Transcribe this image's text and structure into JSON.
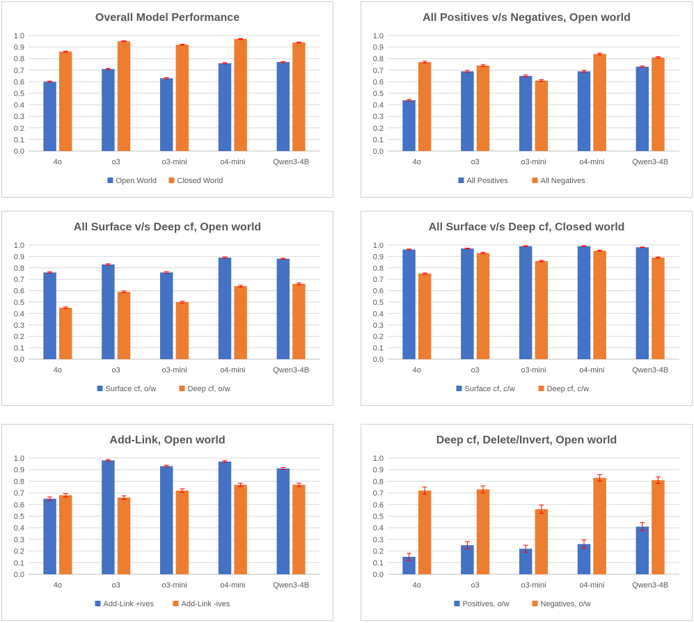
{
  "chart_data": [
    {
      "type": "bar",
      "title": "Overall Model Performance",
      "categories": [
        "4o",
        "o3",
        "o3-mini",
        "o4-mini",
        "Qwen3-4B"
      ],
      "ylim": [
        0,
        1.0
      ],
      "yticks": [
        "0.0",
        "0.1",
        "0.2",
        "0.3",
        "0.4",
        "0.5",
        "0.6",
        "0.7",
        "0.8",
        "0.9",
        "1.0"
      ],
      "grid": true,
      "legend_position": "bottom",
      "series": [
        {
          "name": "Open World",
          "color": "#4472C4",
          "values": [
            0.6,
            0.71,
            0.63,
            0.76,
            0.77
          ],
          "errors": [
            0.005,
            0.005,
            0.005,
            0.005,
            0.005
          ]
        },
        {
          "name": "Closed World",
          "color": "#ED7D31",
          "values": [
            0.86,
            0.95,
            0.92,
            0.97,
            0.94
          ],
          "errors": [
            0.004,
            0.004,
            0.004,
            0.004,
            0.004
          ]
        }
      ]
    },
    {
      "type": "bar",
      "title": "All Positives v/s Negatives, Open world",
      "categories": [
        "4o",
        "o3",
        "o3-mini",
        "o4-mini",
        "Qwen3-4B"
      ],
      "ylim": [
        0,
        1.0
      ],
      "yticks": [
        "0.0",
        "0.1",
        "0.2",
        "0.3",
        "0.4",
        "0.5",
        "0.6",
        "0.7",
        "0.8",
        "0.9",
        "1.0"
      ],
      "grid": true,
      "legend_position": "bottom",
      "series": [
        {
          "name": "All Positives",
          "color": "#4472C4",
          "values": [
            0.44,
            0.69,
            0.65,
            0.69,
            0.73
          ],
          "errors": [
            0.008,
            0.008,
            0.008,
            0.008,
            0.006
          ]
        },
        {
          "name": "All Negatives",
          "color": "#ED7D31",
          "values": [
            0.77,
            0.74,
            0.61,
            0.84,
            0.81
          ],
          "errors": [
            0.008,
            0.008,
            0.008,
            0.008,
            0.006
          ]
        }
      ]
    },
    {
      "type": "bar",
      "title": "All Surface v/s Deep cf, Open world",
      "categories": [
        "4o",
        "o3",
        "o3-mini",
        "o4-mini",
        "Qwen3-4B"
      ],
      "ylim": [
        0,
        1.0
      ],
      "yticks": [
        "0.0",
        "0.1",
        "0.2",
        "0.3",
        "0.4",
        "0.5",
        "0.6",
        "0.7",
        "0.8",
        "0.9",
        "1.0"
      ],
      "grid": true,
      "legend_position": "bottom",
      "series": [
        {
          "name": "Surface cf, o/w",
          "color": "#4472C4",
          "values": [
            0.76,
            0.83,
            0.76,
            0.89,
            0.88
          ],
          "errors": [
            0.006,
            0.006,
            0.008,
            0.006,
            0.005
          ]
        },
        {
          "name": "Deep cf, o/w",
          "color": "#ED7D31",
          "values": [
            0.45,
            0.59,
            0.5,
            0.64,
            0.66
          ],
          "errors": [
            0.008,
            0.008,
            0.008,
            0.008,
            0.008
          ]
        }
      ]
    },
    {
      "type": "bar",
      "title": "All Surface v/s Deep cf, Closed world",
      "categories": [
        "4o",
        "o3",
        "o3-mini",
        "o4-mini",
        "Qwen3-4B"
      ],
      "ylim": [
        0,
        1.0
      ],
      "yticks": [
        "0.0",
        "0.1",
        "0.2",
        "0.3",
        "0.4",
        "0.5",
        "0.6",
        "0.7",
        "0.8",
        "0.9",
        "1.0"
      ],
      "grid": true,
      "legend_position": "bottom",
      "series": [
        {
          "name": "Surface cf, c/w",
          "color": "#4472C4",
          "values": [
            0.96,
            0.97,
            0.99,
            0.99,
            0.98
          ],
          "errors": [
            0.004,
            0.003,
            0.003,
            0.003,
            0.003
          ]
        },
        {
          "name": "Deep cf, c/w",
          "color": "#ED7D31",
          "values": [
            0.75,
            0.93,
            0.86,
            0.95,
            0.89
          ],
          "errors": [
            0.006,
            0.005,
            0.006,
            0.005,
            0.005
          ]
        }
      ]
    },
    {
      "type": "bar",
      "title": "Add-Link, Open world",
      "categories": [
        "4o",
        "o3",
        "o3-mini",
        "o4-mini",
        "Qwen3-4B"
      ],
      "ylim": [
        0,
        1.0
      ],
      "yticks": [
        "0.0",
        "0.1",
        "0.2",
        "0.3",
        "0.4",
        "0.5",
        "0.6",
        "0.7",
        "0.8",
        "0.9",
        "1.0"
      ],
      "grid": true,
      "legend_position": "bottom",
      "series": [
        {
          "name": "Add-Link +ives",
          "color": "#4472C4",
          "values": [
            0.65,
            0.98,
            0.93,
            0.97,
            0.91
          ],
          "errors": [
            0.015,
            0.006,
            0.008,
            0.007,
            0.009
          ]
        },
        {
          "name": "Add-Link -ives",
          "color": "#ED7D31",
          "values": [
            0.68,
            0.66,
            0.72,
            0.77,
            0.77
          ],
          "errors": [
            0.015,
            0.015,
            0.015,
            0.014,
            0.014
          ]
        }
      ]
    },
    {
      "type": "bar",
      "title": "Deep cf, Delete/Invert, Open world",
      "categories": [
        "4o",
        "o3",
        "o3-mini",
        "o4-mini",
        "Qwen3-4B"
      ],
      "ylim": [
        0,
        1.0
      ],
      "yticks": [
        "0.0",
        "0.1",
        "0.2",
        "0.3",
        "0.4",
        "0.5",
        "0.6",
        "0.7",
        "0.8",
        "0.9",
        "1.0"
      ],
      "grid": true,
      "legend_position": "bottom",
      "series": [
        {
          "name": "Positives, o/w",
          "color": "#4472C4",
          "values": [
            0.15,
            0.25,
            0.22,
            0.26,
            0.41
          ],
          "errors": [
            0.03,
            0.03,
            0.03,
            0.035,
            0.035
          ]
        },
        {
          "name": "Negatives, o/w",
          "color": "#ED7D31",
          "values": [
            0.72,
            0.73,
            0.56,
            0.83,
            0.81
          ],
          "errors": [
            0.03,
            0.03,
            0.035,
            0.028,
            0.028
          ]
        }
      ]
    }
  ],
  "style": {
    "error_color": "#FF0000",
    "grid_color": "#D9D9D9",
    "axis_color": "#BFBFBF"
  }
}
